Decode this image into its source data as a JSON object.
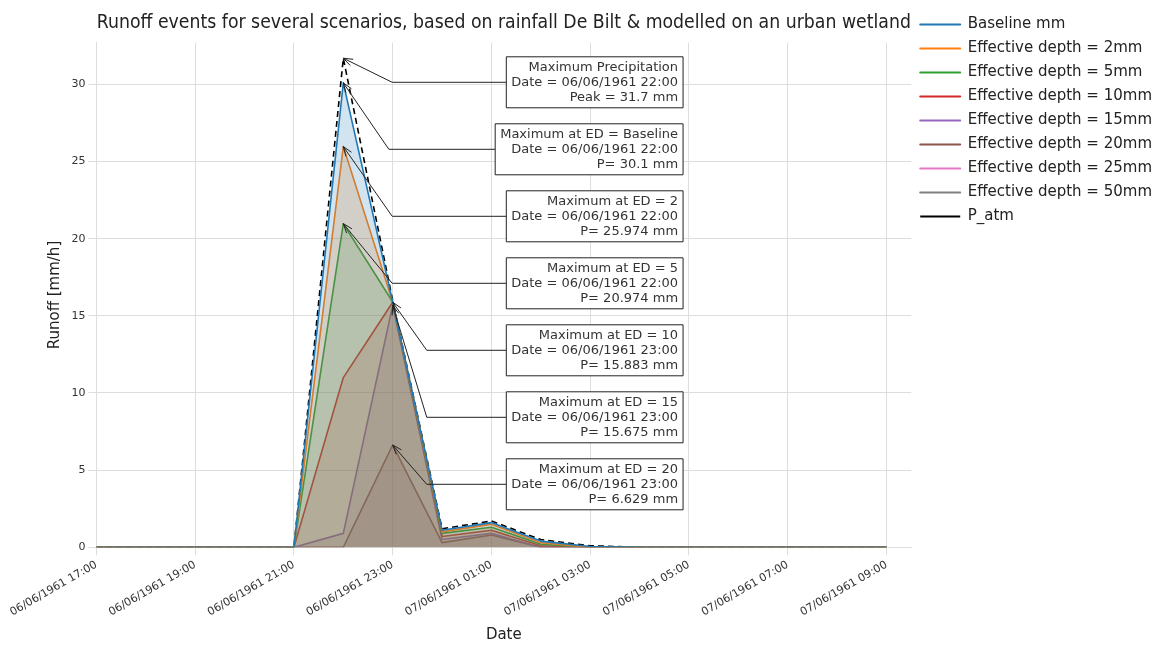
{
  "chart_data": {
    "type": "area",
    "title": "Runoff events for several scenarios, based on rainfall De Bilt & modelled on an urban wetland",
    "xlabel": "Date",
    "ylabel": "Runoff [mm/h]",
    "x": [
      "1961-06-06T17:00",
      "1961-06-06T18:00",
      "1961-06-06T19:00",
      "1961-06-06T20:00",
      "1961-06-06T21:00",
      "1961-06-06T22:00",
      "1961-06-06T23:00",
      "1961-06-07T00:00",
      "1961-06-07T01:00",
      "1961-06-07T02:00",
      "1961-06-07T03:00",
      "1961-06-07T04:00",
      "1961-06-07T05:00",
      "1961-06-07T06:00",
      "1961-06-07T07:00",
      "1961-06-07T08:00",
      "1961-06-07T09:00"
    ],
    "series": [
      {
        "name": "Baseline mm",
        "color": "#1f77b4",
        "values": [
          0,
          0,
          0,
          0,
          0,
          30.1,
          15.9,
          1.1,
          1.6,
          0.4,
          0.05,
          0,
          0,
          0,
          0,
          0,
          0
        ]
      },
      {
        "name": "Effective depth = 2mm",
        "color": "#ff7f0e",
        "values": [
          0,
          0,
          0,
          0,
          0,
          25.974,
          15.9,
          1.0,
          1.5,
          0.3,
          0,
          0,
          0,
          0,
          0,
          0,
          0
        ]
      },
      {
        "name": "Effective depth = 5mm",
        "color": "#2ca02c",
        "values": [
          0,
          0,
          0,
          0,
          0,
          20.974,
          15.9,
          0.9,
          1.3,
          0.2,
          0,
          0,
          0,
          0,
          0,
          0,
          0
        ]
      },
      {
        "name": "Effective depth = 10mm",
        "color": "#d62728",
        "values": [
          0,
          0,
          0,
          0,
          0,
          11.0,
          15.883,
          0.7,
          1.1,
          0.1,
          0,
          0,
          0,
          0,
          0,
          0,
          0
        ]
      },
      {
        "name": "Effective depth = 15mm",
        "color": "#9467bd",
        "values": [
          0,
          0,
          0,
          0,
          0,
          0.9,
          15.675,
          0.5,
          0.9,
          0,
          0,
          0,
          0,
          0,
          0,
          0,
          0
        ]
      },
      {
        "name": "Effective depth = 20mm",
        "color": "#8c564b",
        "values": [
          0,
          0,
          0,
          0,
          0,
          0,
          6.629,
          0.3,
          0.8,
          0,
          0,
          0,
          0,
          0,
          0,
          0,
          0
        ]
      },
      {
        "name": "Effective depth = 25mm",
        "color": "#e377c2",
        "values": [
          null,
          null,
          null,
          null,
          null,
          null,
          null,
          null,
          null,
          null,
          null,
          null,
          null,
          null,
          null,
          null,
          null
        ]
      },
      {
        "name": "Effective depth = 50mm",
        "color": "#7f7f7f",
        "values": [
          null,
          null,
          null,
          null,
          null,
          null,
          null,
          null,
          null,
          null,
          null,
          null,
          null,
          null,
          null,
          null,
          null
        ]
      },
      {
        "name": "P_atm",
        "color": "#000000",
        "type": "line",
        "line_style": "dashed",
        "values": [
          0,
          0,
          0,
          0,
          0,
          31.7,
          16.0,
          1.2,
          1.7,
          0.5,
          0.1,
          0,
          0,
          0,
          0,
          0,
          0
        ]
      }
    ],
    "xlim": [
      "1961-06-06T17:00",
      "1961-06-07T09:30"
    ],
    "xticks": [
      {
        "value": "1961-06-06T17:00",
        "label": "06/06/1961 17:00"
      },
      {
        "value": "1961-06-06T19:00",
        "label": "06/06/1961 19:00"
      },
      {
        "value": "1961-06-06T21:00",
        "label": "06/06/1961 21:00"
      },
      {
        "value": "1961-06-06T23:00",
        "label": "06/06/1961 23:00"
      },
      {
        "value": "1961-06-07T01:00",
        "label": "07/06/1961 01:00"
      },
      {
        "value": "1961-06-07T03:00",
        "label": "07/06/1961 03:00"
      },
      {
        "value": "1961-06-07T05:00",
        "label": "07/06/1961 05:00"
      },
      {
        "value": "1961-06-07T07:00",
        "label": "07/06/1961 07:00"
      },
      {
        "value": "1961-06-07T09:00",
        "label": "07/06/1961 09:00"
      }
    ],
    "ylim": [
      0,
      32.7
    ],
    "yticks": [
      0,
      5,
      10,
      15,
      20,
      25,
      30
    ],
    "grid": true,
    "legend": "top right",
    "marker": "none",
    "line_style": "solid",
    "annotations": [
      {
        "text": "Maximum Precipitation\nDate = 06/06/1961 22:00\nPeak = 31.7 mm",
        "x": "1961-06-06T22:00",
        "y": 31.7
      },
      {
        "text": "Maximum at ED = Baseline\nDate = 06/06/1961 22:00\nP= 30.1 mm",
        "x": "1961-06-06T22:00",
        "y": 30.1
      },
      {
        "text": "Maximum at ED = 2\nDate = 06/06/1961 22:00\nP= 25.974 mm",
        "x": "1961-06-06T22:00",
        "y": 25.974
      },
      {
        "text": "Maximum at ED = 5\nDate = 06/06/1961 22:00\nP= 20.974 mm",
        "x": "1961-06-06T22:00",
        "y": 20.974
      },
      {
        "text": "Maximum at ED = 10\nDate = 06/06/1961 23:00\nP= 15.883 mm",
        "x": "1961-06-06T23:00",
        "y": 15.883
      },
      {
        "text": "Maximum at ED = 15\nDate = 06/06/1961 23:00\nP= 15.675 mm",
        "x": "1961-06-06T23:00",
        "y": 15.675
      },
      {
        "text": "Maximum at ED = 20\nDate = 06/06/1961 23:00\nP= 6.629 mm",
        "x": "1961-06-06T23:00",
        "y": 6.629
      }
    ]
  }
}
